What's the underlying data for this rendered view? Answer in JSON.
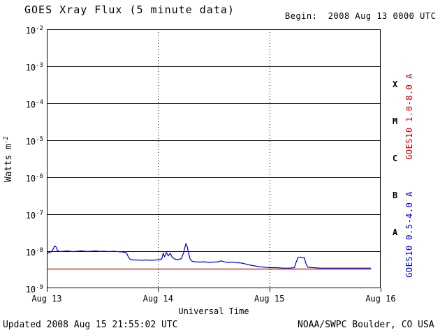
{
  "header": {
    "title": "GOES Xray Flux (5 minute data)",
    "begin": "Begin:  2008 Aug 13 0000 UTC"
  },
  "footer": {
    "updated": "Updated 2008 Aug 15 21:55:02 UTC",
    "source": "NOAA/SWPC Boulder, CO USA"
  },
  "axes": {
    "ylabel_base": "Watts m",
    "ylabel_sup": "-2",
    "xlabel": "Universal Time"
  },
  "right_labels": {
    "red": "GOES10 1.0-8.0 A",
    "blue": "GOES10 0.5-4.0 A"
  },
  "colors": {
    "red": "#cc0000",
    "blue": "#0000cc",
    "axis": "#000000",
    "background": "#ffffff"
  },
  "chart_data": {
    "type": "line",
    "title": "GOES Xray Flux (5 minute data)",
    "xlabel": "Universal Time",
    "ylabel": "Watts m^-2",
    "x_unit": "hours since 2008 Aug 13 0000 UTC",
    "xlim": [
      0,
      72
    ],
    "ylim_exp": [
      -9,
      -2
    ],
    "grid": "horizontal solid decade lines; dotted vertical lines at day boundaries",
    "x_ticks": [
      0,
      24,
      48,
      72
    ],
    "x_tick_labels": [
      "Aug 13",
      "Aug 14",
      "Aug 15",
      "Aug 16"
    ],
    "y_ticks_exp": [
      -2,
      -3,
      -4,
      -5,
      -6,
      -7,
      -8,
      -9
    ],
    "flare_classes": [
      {
        "label": "X",
        "mid_exp": -3.5
      },
      {
        "label": "M",
        "mid_exp": -4.5
      },
      {
        "label": "C",
        "mid_exp": -5.5
      },
      {
        "label": "B",
        "mid_exp": -6.5
      },
      {
        "label": "A",
        "mid_exp": -7.5
      }
    ],
    "grid_vlines_hours": [
      24,
      48
    ],
    "series": [
      {
        "name": "GOES10 1.0-8.0 A",
        "color_key": "red",
        "points": [
          [
            0,
            3.3e-09
          ],
          [
            69.9,
            3.3e-09
          ]
        ]
      },
      {
        "name": "GOES10 0.5-4.0 A",
        "color_key": "blue",
        "points": [
          [
            0,
            8.5e-09
          ],
          [
            0.4,
            9.2e-09
          ],
          [
            0.9,
            9.6e-09
          ],
          [
            1.3,
            1.1e-08
          ],
          [
            1.7,
            1.4e-08
          ],
          [
            2.0,
            1.3e-08
          ],
          [
            2.3,
            1.05e-08
          ],
          [
            2.8,
            9.8e-09
          ],
          [
            3.5,
            1e-08
          ],
          [
            4.5,
            1.02e-08
          ],
          [
            5.5,
            9.8e-09
          ],
          [
            6.5,
            1e-08
          ],
          [
            7.5,
            1.03e-08
          ],
          [
            8.5,
            9.9e-09
          ],
          [
            9.5,
            1e-08
          ],
          [
            10.5,
            1.02e-08
          ],
          [
            11.5,
            9.9e-09
          ],
          [
            12.5,
            1e-08
          ],
          [
            13.5,
            9.8e-09
          ],
          [
            14.5,
            1e-08
          ],
          [
            15.5,
            9.7e-09
          ],
          [
            16.5,
            9.5e-09
          ],
          [
            17.2,
            9e-09
          ],
          [
            17.6,
            7e-09
          ],
          [
            18.0,
            6e-09
          ],
          [
            18.6,
            5.8e-09
          ],
          [
            19.5,
            5.8e-09
          ],
          [
            20.5,
            5.7e-09
          ],
          [
            21.5,
            5.8e-09
          ],
          [
            22.5,
            5.7e-09
          ],
          [
            23.5,
            5.8e-09
          ],
          [
            24.3,
            5.9e-09
          ],
          [
            24.8,
            6.2e-09
          ],
          [
            25.1,
            8.8e-09
          ],
          [
            25.4,
            7.2e-09
          ],
          [
            25.8,
            9.2e-09
          ],
          [
            26.2,
            7.5e-09
          ],
          [
            26.6,
            8.8e-09
          ],
          [
            27.0,
            7e-09
          ],
          [
            27.5,
            6.2e-09
          ],
          [
            28.2,
            5.9e-09
          ],
          [
            29.0,
            6.3e-09
          ],
          [
            29.5,
            9e-09
          ],
          [
            29.8,
            1.3e-08
          ],
          [
            30.0,
            1.6e-08
          ],
          [
            30.3,
            1.3e-08
          ],
          [
            30.6,
            8.5e-09
          ],
          [
            30.9,
            6.2e-09
          ],
          [
            31.3,
            5.4e-09
          ],
          [
            32.0,
            5.2e-09
          ],
          [
            33.0,
            5.1e-09
          ],
          [
            34.0,
            5.2e-09
          ],
          [
            35.0,
            5e-09
          ],
          [
            36.0,
            5.1e-09
          ],
          [
            37.0,
            5.2e-09
          ],
          [
            37.6,
            5.5e-09
          ],
          [
            38.2,
            5.2e-09
          ],
          [
            39.0,
            5e-09
          ],
          [
            40.0,
            5.1e-09
          ],
          [
            41.0,
            4.9e-09
          ],
          [
            42.0,
            4.8e-09
          ],
          [
            43.0,
            4.5e-09
          ],
          [
            44.0,
            4.2e-09
          ],
          [
            45.0,
            4e-09
          ],
          [
            46.0,
            3.8e-09
          ],
          [
            47.0,
            3.7e-09
          ],
          [
            48.0,
            3.6e-09
          ],
          [
            49.5,
            3.6e-09
          ],
          [
            51.0,
            3.5e-09
          ],
          [
            52.5,
            3.5e-09
          ],
          [
            53.4,
            3.6e-09
          ],
          [
            53.8,
            5.2e-09
          ],
          [
            54.2,
            6.8e-09
          ],
          [
            54.7,
            7e-09
          ],
          [
            55.1,
            6.6e-09
          ],
          [
            55.5,
            6.8e-09
          ],
          [
            55.9,
            4.6e-09
          ],
          [
            56.3,
            3.7e-09
          ],
          [
            57.5,
            3.6e-09
          ],
          [
            59.0,
            3.5e-09
          ],
          [
            61.0,
            3.5e-09
          ],
          [
            63.0,
            3.5e-09
          ],
          [
            65.0,
            3.5e-09
          ],
          [
            67.0,
            3.5e-09
          ],
          [
            69.9,
            3.5e-09
          ]
        ]
      }
    ]
  }
}
